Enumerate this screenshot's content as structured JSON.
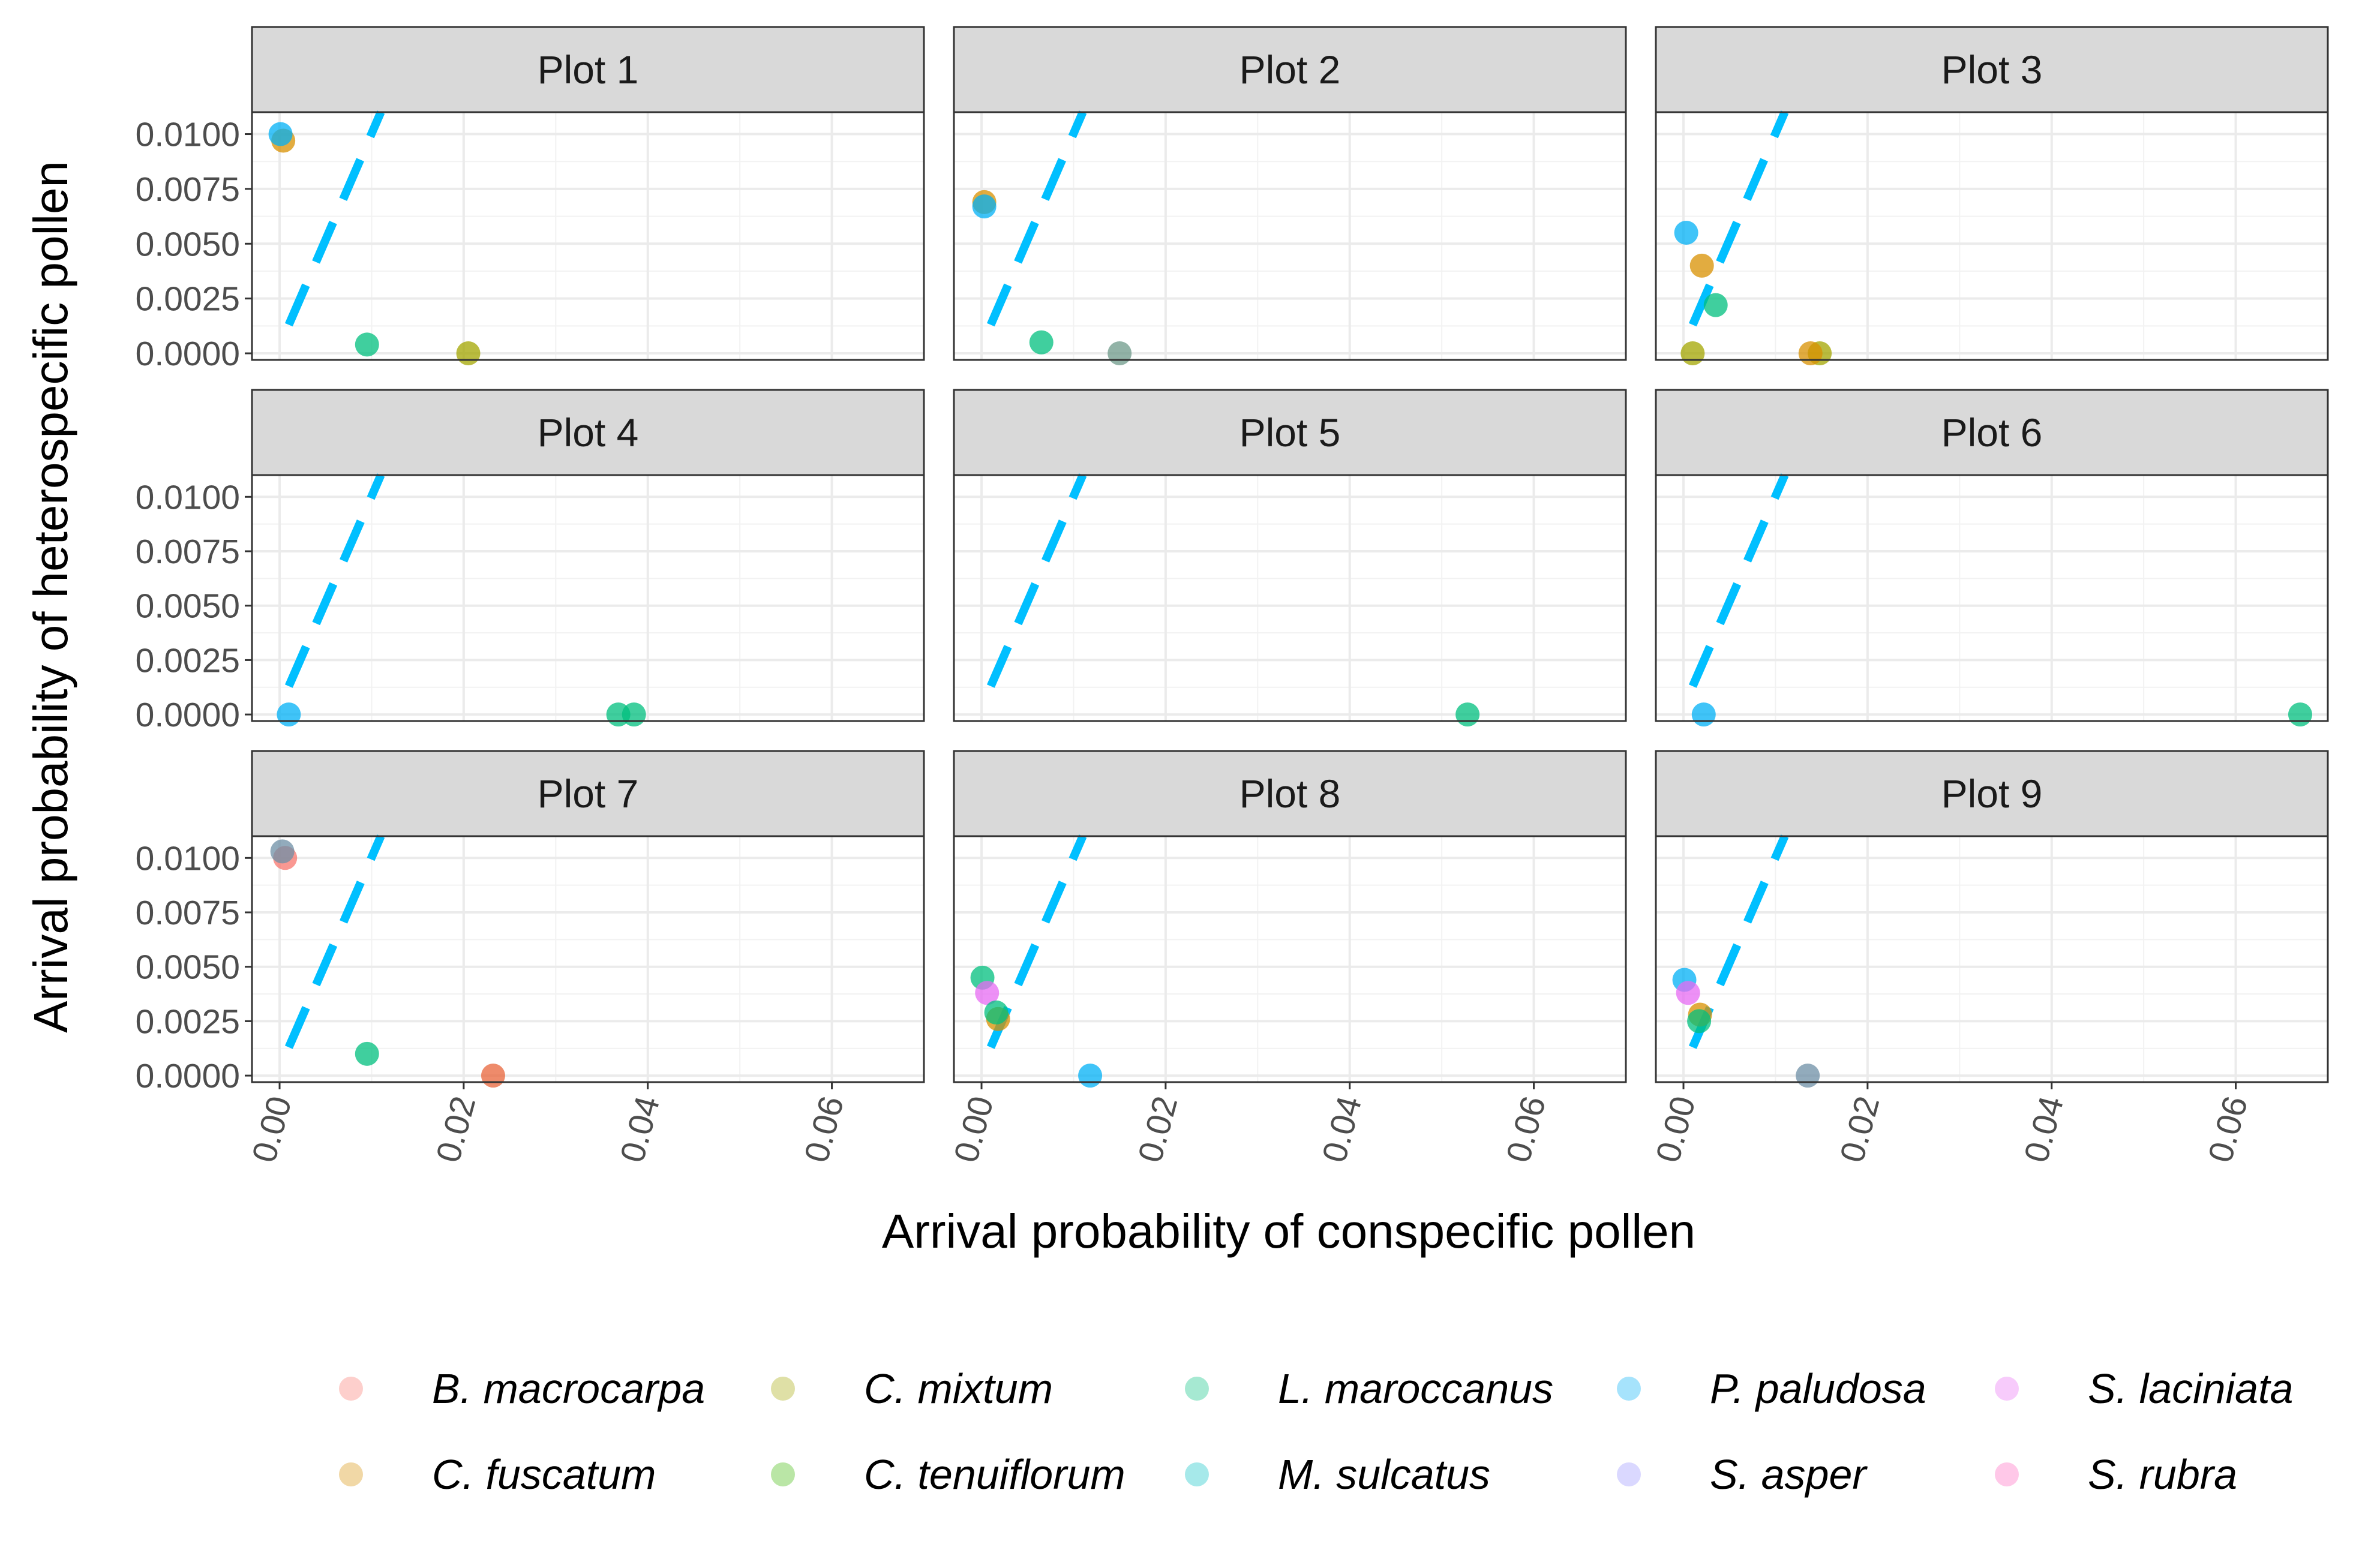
{
  "chart_data": {
    "type": "scatter",
    "xlabel": "Arrival probability of conspecific pollen",
    "ylabel": "Arrival probability of heterospecific pollen",
    "xlim": [
      -0.003,
      0.07
    ],
    "ylim": [
      -0.0003,
      0.011
    ],
    "x_ticks": [
      0,
      0.02,
      0.04,
      0.06
    ],
    "x_tick_labels": [
      "0.00",
      "0.02",
      "0.04",
      "0.06"
    ],
    "y_ticks": [
      0,
      0.0025,
      0.005,
      0.0075,
      0.01
    ],
    "y_tick_labels": [
      "0.0000",
      "0.0025",
      "0.0050",
      "0.0075",
      "0.0100"
    ],
    "grid": true,
    "legend_position": "bottom",
    "reference_line": {
      "style": "dashed",
      "color": "#00bfff",
      "x": [
        0.001,
        0.011
      ],
      "y": [
        0.0013,
        0.011
      ]
    },
    "species": [
      {
        "name": "B. macrocarpa",
        "color": "#F8766D"
      },
      {
        "name": "C. fuscatum",
        "color": "#D89000"
      },
      {
        "name": "C. mixtum",
        "color": "#A3A500"
      },
      {
        "name": "C. tenuiflorum",
        "color": "#39B600"
      },
      {
        "name": "L. maroccanus",
        "color": "#00BF7D"
      },
      {
        "name": "M. sulcatus",
        "color": "#00BFC4"
      },
      {
        "name": "P. paludosa",
        "color": "#00B0F6"
      },
      {
        "name": "S. asper",
        "color": "#9590FF"
      },
      {
        "name": "S. laciniata",
        "color": "#E76BF3"
      },
      {
        "name": "S. rubra",
        "color": "#FF62BC"
      }
    ],
    "panels": [
      {
        "title": "Plot 1",
        "points": [
          {
            "x": 0.0004,
            "y": 0.0097,
            "color": "#D89000"
          },
          {
            "x": 0.0001,
            "y": 0.01,
            "color": "#00B0F6"
          },
          {
            "x": 0.0095,
            "y": 0.0004,
            "color": "#00BF7D"
          },
          {
            "x": 0.0205,
            "y": 0.0,
            "color": "#A3A500"
          }
        ]
      },
      {
        "title": "Plot 2",
        "points": [
          {
            "x": 0.0003,
            "y": 0.0069,
            "color": "#D89000"
          },
          {
            "x": 0.0003,
            "y": 0.0067,
            "color": "#00B0F6"
          },
          {
            "x": 0.0065,
            "y": 0.0005,
            "color": "#00BF7D"
          },
          {
            "x": 0.015,
            "y": 0.0,
            "color": "#6E9A8A"
          }
        ]
      },
      {
        "title": "Plot 3",
        "points": [
          {
            "x": 0.0003,
            "y": 0.0055,
            "color": "#00B0F6"
          },
          {
            "x": 0.002,
            "y": 0.004,
            "color": "#D89000"
          },
          {
            "x": 0.0035,
            "y": 0.0022,
            "color": "#00BF7D"
          },
          {
            "x": 0.001,
            "y": 0.0,
            "color": "#A3A500"
          },
          {
            "x": 0.0148,
            "y": 0.0,
            "color": "#A3A500"
          },
          {
            "x": 0.0138,
            "y": 0.0,
            "color": "#D89000"
          }
        ]
      },
      {
        "title": "Plot 4",
        "points": [
          {
            "x": 0.001,
            "y": 0.0,
            "color": "#00B0F6"
          },
          {
            "x": 0.0385,
            "y": 0.0,
            "color": "#00BF7D"
          },
          {
            "x": 0.0368,
            "y": 0.0,
            "color": "#00BF7D"
          }
        ]
      },
      {
        "title": "Plot 5",
        "points": [
          {
            "x": 0.0528,
            "y": 0.0,
            "color": "#00BF7D"
          }
        ]
      },
      {
        "title": "Plot 6",
        "points": [
          {
            "x": 0.0022,
            "y": 0.0,
            "color": "#00B0F6"
          },
          {
            "x": 0.067,
            "y": 0.0,
            "color": "#00BF7D"
          }
        ]
      },
      {
        "title": "Plot 7",
        "points": [
          {
            "x": 0.0006,
            "y": 0.01,
            "color": "#F8766D"
          },
          {
            "x": 0.0003,
            "y": 0.0103,
            "color": "#6E8FA6"
          },
          {
            "x": 0.0095,
            "y": 0.001,
            "color": "#00BF7D"
          },
          {
            "x": 0.0232,
            "y": 0.0,
            "color": "#E8643A"
          }
        ]
      },
      {
        "title": "Plot 8",
        "points": [
          {
            "x": 0.0001,
            "y": 0.0045,
            "color": "#00BF7D"
          },
          {
            "x": 0.0006,
            "y": 0.0038,
            "color": "#E76BF3"
          },
          {
            "x": 0.0018,
            "y": 0.0026,
            "color": "#D89000"
          },
          {
            "x": 0.0016,
            "y": 0.0029,
            "color": "#00BF7D"
          },
          {
            "x": 0.0118,
            "y": 0.0,
            "color": "#00B0F6"
          }
        ]
      },
      {
        "title": "Plot 9",
        "points": [
          {
            "x": 0.0001,
            "y": 0.0044,
            "color": "#00B0F6"
          },
          {
            "x": 0.0005,
            "y": 0.0038,
            "color": "#E76BF3"
          },
          {
            "x": 0.0018,
            "y": 0.0028,
            "color": "#D89000"
          },
          {
            "x": 0.0017,
            "y": 0.0025,
            "color": "#00BF7D"
          },
          {
            "x": 0.0135,
            "y": 0.0,
            "color": "#6E8FA6"
          }
        ]
      }
    ]
  }
}
